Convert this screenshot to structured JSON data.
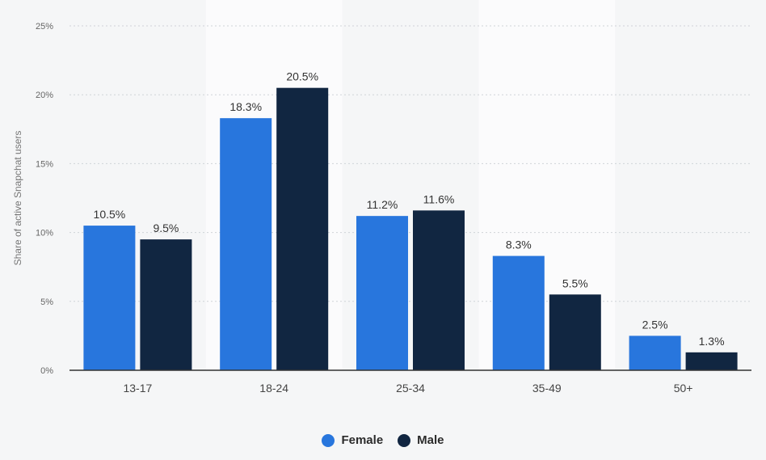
{
  "chart_data": {
    "type": "bar",
    "categories": [
      "13-17",
      "18-24",
      "25-34",
      "35-49",
      "50+"
    ],
    "series": [
      {
        "name": "Female",
        "values": [
          10.5,
          18.3,
          11.2,
          8.3,
          2.5
        ],
        "labels": [
          "10.5%",
          "18.3%",
          "11.2%",
          "8.3%",
          "2.5%"
        ],
        "color": "#2876dd"
      },
      {
        "name": "Male",
        "values": [
          9.5,
          20.5,
          11.6,
          5.5,
          1.3
        ],
        "labels": [
          "9.5%",
          "20.5%",
          "11.6%",
          "5.5%",
          "1.3%"
        ],
        "color": "#112641"
      }
    ],
    "ylabel": "Share of active Snapchat users",
    "ylim": [
      0,
      25
    ],
    "yticks": [
      0,
      5,
      10,
      15,
      20,
      25
    ],
    "ytick_labels": [
      "0%",
      "5%",
      "10%",
      "15%",
      "20%",
      "25%"
    ],
    "grid": true,
    "legend_position": "bottom-center"
  },
  "legend": {
    "female_label": "Female",
    "male_label": "Male",
    "female_color": "#2876dd",
    "male_color": "#112641"
  },
  "colors": {
    "background": "#f5f6f7",
    "highlight_band": "#fbfbfc",
    "grid": "#cfd3d8",
    "axis": "#333333",
    "text": "#555555"
  }
}
